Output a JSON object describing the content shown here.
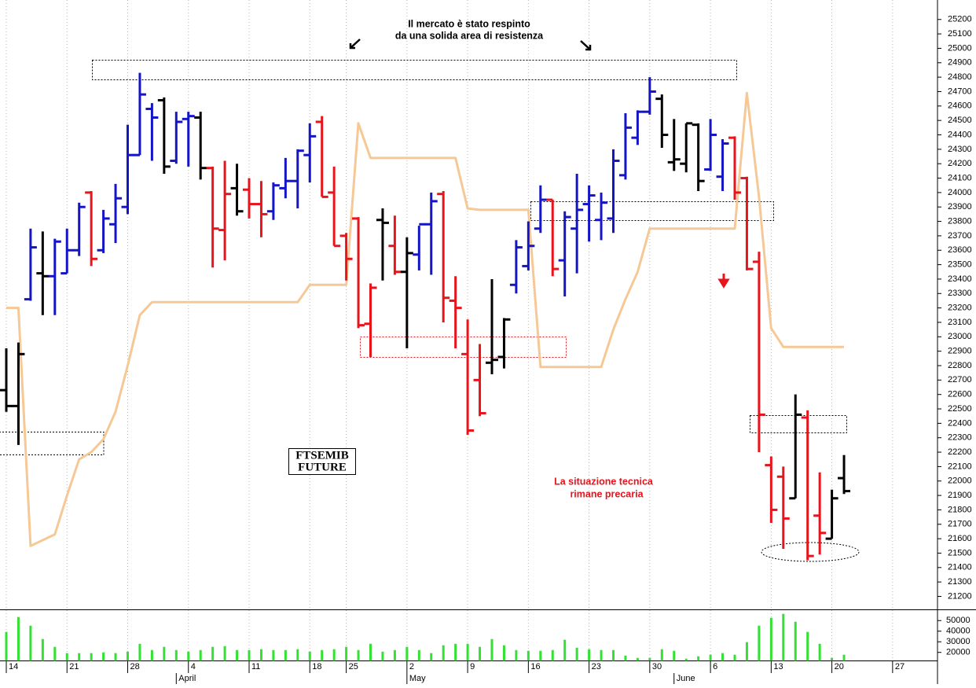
{
  "chart_data": {
    "type": "ohlc",
    "categories": [
      "14",
      null,
      null,
      null,
      null,
      "21",
      null,
      null,
      null,
      null,
      "28",
      null,
      null,
      null,
      null,
      "4",
      null,
      null,
      null,
      null,
      "11",
      null,
      null,
      null,
      null,
      "18",
      null,
      null,
      "25",
      null,
      null,
      null,
      null,
      "2",
      null,
      null,
      null,
      null,
      "9",
      null,
      null,
      null,
      null,
      "16",
      null,
      null,
      null,
      null,
      "23",
      null,
      null,
      null,
      null,
      "30",
      null,
      null,
      null,
      null,
      "6",
      null,
      null,
      null,
      null,
      "13",
      null,
      null,
      null,
      null,
      "20",
      null,
      null,
      null,
      null,
      "27",
      null,
      null,
      null
    ],
    "months": [
      null,
      null,
      null,
      null,
      null,
      null,
      null,
      null,
      null,
      null,
      null,
      null,
      null,
      null,
      "April",
      null,
      null,
      null,
      null,
      null,
      null,
      null,
      null,
      null,
      null,
      null,
      null,
      null,
      null,
      null,
      null,
      null,
      null,
      "May",
      null,
      null,
      null,
      null,
      null,
      null,
      null,
      null,
      null,
      null,
      null,
      null,
      null,
      null,
      null,
      null,
      null,
      null,
      null,
      null,
      null,
      "June",
      null,
      null,
      null,
      null,
      null,
      null,
      null,
      null,
      null,
      null,
      null,
      null,
      null,
      null,
      null,
      null,
      null,
      null,
      null,
      null,
      null
    ],
    "open": [
      22630,
      22520,
      23260,
      23440,
      23420,
      23440,
      23600,
      24000,
      23600,
      23780,
      23900,
      24260,
      24580,
      24640,
      24220,
      24510,
      24520,
      24170,
      23740,
      24030,
      24020,
      23920,
      23870,
      24030,
      24080,
      24260,
      24490,
      24000,
      23700,
      23820,
      23090,
      23810,
      23630,
      23450,
      23570,
      23780,
      23990,
      23250,
      22880,
      22700,
      22820,
      22860,
      23360,
      23490,
      23750,
      23950,
      23530,
      23750,
      23920,
      23810,
      23820,
      24120,
      24380,
      24560,
      24650,
      24210,
      24200,
      24470,
      24160,
      24110,
      24380,
      24100,
      23520,
      22110,
      22030,
      21880,
      22440,
      21760,
      21600,
      22020,
      null,
      null,
      null,
      null,
      null,
      null,
      null
    ],
    "high": [
      22920,
      22960,
      23750,
      23730,
      23680,
      23750,
      23930,
      24010,
      23880,
      24060,
      24470,
      24830,
      24620,
      24660,
      24560,
      24560,
      24560,
      24180,
      24220,
      24200,
      24100,
      24080,
      24070,
      24240,
      24300,
      24480,
      24530,
      24180,
      23720,
      23830,
      23370,
      23890,
      23840,
      23690,
      23770,
      24000,
      24010,
      23420,
      23120,
      22950,
      23400,
      23130,
      23670,
      23800,
      24050,
      23950,
      23870,
      24130,
      24050,
      24000,
      24300,
      24550,
      24570,
      24800,
      24680,
      24510,
      24480,
      24480,
      24510,
      24370,
      24390,
      24110,
      23590,
      22170,
      22100,
      22600,
      22490,
      22060,
      21940,
      22180,
      null,
      null,
      null,
      null,
      null,
      null,
      null
    ],
    "low": [
      22480,
      22250,
      23250,
      23150,
      23150,
      23440,
      23560,
      23490,
      23580,
      23650,
      23850,
      24260,
      24220,
      24130,
      24200,
      24180,
      24090,
      23480,
      23530,
      23840,
      23820,
      23690,
      23810,
      23960,
      23890,
      24070,
      23970,
      23630,
      23390,
      23060,
      22860,
      23390,
      23430,
      22920,
      23460,
      23430,
      23100,
      22920,
      22320,
      22450,
      22740,
      22780,
      23300,
      23460,
      23720,
      23420,
      23280,
      23440,
      23660,
      23670,
      23720,
      24090,
      24330,
      24540,
      24310,
      24150,
      24140,
      24010,
      24150,
      24010,
      23950,
      23460,
      22200,
      21710,
      21530,
      21880,
      21450,
      21490,
      21600,
      21910,
      null,
      null,
      null,
      null,
      null,
      null,
      null
    ],
    "close": [
      22520,
      22880,
      23620,
      23420,
      23660,
      23600,
      23900,
      23540,
      23820,
      23960,
      24260,
      24680,
      24520,
      24180,
      24490,
      24530,
      24170,
      23750,
      23990,
      23870,
      23920,
      23850,
      24050,
      24080,
      24290,
      24390,
      23970,
      23630,
      23540,
      23080,
      23340,
      23790,
      23450,
      23580,
      23780,
      23940,
      23270,
      23200,
      22350,
      22470,
      22840,
      23120,
      23620,
      23630,
      23950,
      23470,
      23830,
      23880,
      23980,
      23930,
      24220,
      24450,
      24560,
      24700,
      24400,
      24230,
      24480,
      24080,
      24400,
      24340,
      24000,
      23470,
      22460,
      21800,
      21740,
      22460,
      21480,
      21640,
      21880,
      21930,
      null,
      null,
      null,
      null,
      null,
      null,
      null
    ],
    "bar_colors": [
      "#000000",
      "#000000",
      "#1515c8",
      "#000000",
      "#1515c8",
      "#1515c8",
      "#1515c8",
      "#e8141c",
      "#1515c8",
      "#1515c8",
      "#1515c8",
      "#1515c8",
      "#1515c8",
      "#000000",
      "#1515c8",
      "#1515c8",
      "#000000",
      "#e8141c",
      "#e8141c",
      "#000000",
      "#e8141c",
      "#e8141c",
      "#1515c8",
      "#1515c8",
      "#1515c8",
      "#1515c8",
      "#e8141c",
      "#e8141c",
      "#e8141c",
      "#e8141c",
      "#e8141c",
      "#000000",
      "#e8141c",
      "#000000",
      "#1515c8",
      "#1515c8",
      "#e8141c",
      "#e8141c",
      "#e8141c",
      "#e8141c",
      "#000000",
      "#000000",
      "#1515c8",
      "#1515c8",
      "#1515c8",
      "#e8141c",
      "#1515c8",
      "#1515c8",
      "#1515c8",
      "#1515c8",
      "#1515c8",
      "#1515c8",
      "#1515c8",
      "#1515c8",
      "#000000",
      "#000000",
      "#000000",
      "#000000",
      "#1515c8",
      "#1515c8",
      "#e8141c",
      "#e8141c",
      "#e8141c",
      "#e8141c",
      "#e8141c",
      "#000000",
      "#e8141c",
      "#e8141c",
      "#000000",
      "#000000",
      null,
      null,
      null,
      null,
      null,
      null,
      null
    ],
    "line": {
      "color": "#f5c896",
      "values": [
        23200,
        23200,
        21550,
        21590,
        21630,
        21900,
        22150,
        22200,
        22290,
        22480,
        22800,
        23150,
        23240,
        23240,
        23240,
        23240,
        23240,
        23240,
        23240,
        23240,
        23240,
        23240,
        23240,
        23240,
        23240,
        23360,
        23360,
        23360,
        23360,
        24480,
        24240,
        24240,
        24240,
        24240,
        24240,
        24240,
        24240,
        24240,
        23890,
        23880,
        23880,
        23880,
        23880,
        23880,
        22790,
        22790,
        22790,
        22790,
        22790,
        22790,
        23050,
        23260,
        23450,
        23750,
        23750,
        23750,
        23750,
        23750,
        23750,
        23750,
        23750,
        24690,
        23970,
        23060,
        22930,
        22930,
        22930,
        22930,
        22930,
        22930,
        null,
        null,
        null,
        null,
        null,
        null,
        null
      ]
    },
    "ylim": [
      21110,
      25335
    ],
    "yticks": [
      21200,
      21300,
      21400,
      21500,
      21600,
      21700,
      21800,
      21900,
      22000,
      22100,
      22200,
      22300,
      22400,
      22500,
      22600,
      22700,
      22800,
      22900,
      23000,
      23100,
      23200,
      23300,
      23400,
      23500,
      23600,
      23700,
      23800,
      23900,
      24000,
      24100,
      24200,
      24300,
      24400,
      24500,
      24600,
      24700,
      24800,
      24900,
      25000,
      25100,
      25200
    ],
    "volume": {
      "color": "#33e033",
      "ylim": [
        12000,
        57000
      ],
      "yticks": [
        20000,
        30000,
        40000,
        50000
      ],
      "values": [
        39300,
        53300,
        45200,
        32600,
        25200,
        19300,
        19300,
        19300,
        20000,
        19300,
        20700,
        28100,
        22200,
        25200,
        22200,
        20700,
        22200,
        25200,
        25900,
        22200,
        22200,
        23000,
        22200,
        22200,
        23000,
        20700,
        22200,
        23000,
        25200,
        22200,
        28100,
        20700,
        22200,
        25200,
        22200,
        19300,
        26700,
        28100,
        28100,
        25200,
        32600,
        26700,
        22200,
        21500,
        21500,
        22200,
        31900,
        24400,
        23000,
        22200,
        22200,
        17000,
        14800,
        14800,
        23000,
        21500,
        14100,
        16300,
        17800,
        19300,
        17800,
        29600,
        45200,
        52600,
        56300,
        48900,
        39300,
        28100,
        14800,
        17800,
        null,
        null,
        null,
        null,
        null,
        null,
        null
      ]
    },
    "annotations": {
      "headline": [
        "Il mercato è stato respinto",
        "da una solida area di resistenza"
      ],
      "badge": [
        "FTSEMIB",
        "FUTURE"
      ],
      "note": [
        "La situazione tecnica",
        "rimane precaria"
      ]
    }
  }
}
